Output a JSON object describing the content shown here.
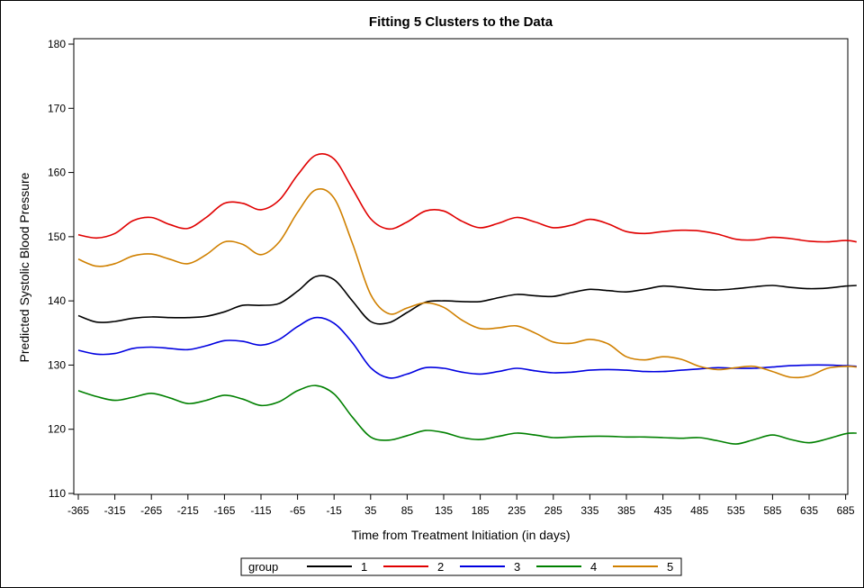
{
  "chart_data": {
    "type": "line",
    "title": "Fitting 5 Clusters to the Data",
    "xlabel": "Time from Treatment Initiation (in days)",
    "ylabel": "Predicted Systolic Blood Pressure",
    "xlim": [
      -365,
      700
    ],
    "ylim": [
      110,
      180
    ],
    "xticks": [
      -365,
      -315,
      -265,
      -215,
      -165,
      -115,
      -65,
      -15,
      35,
      85,
      135,
      185,
      235,
      285,
      335,
      385,
      435,
      485,
      535,
      585,
      635,
      685
    ],
    "yticks": [
      110,
      120,
      130,
      140,
      150,
      160,
      170,
      180
    ],
    "grid": false,
    "legend_title": "group",
    "legend_position": "bottom",
    "x": [
      -365,
      -340,
      -315,
      -290,
      -265,
      -240,
      -215,
      -190,
      -165,
      -140,
      -115,
      -90,
      -65,
      -40,
      -15,
      10,
      35,
      60,
      85,
      110,
      135,
      160,
      185,
      210,
      235,
      260,
      285,
      310,
      335,
      360,
      385,
      410,
      435,
      460,
      485,
      510,
      535,
      560,
      585,
      610,
      635,
      660,
      685,
      700
    ],
    "series": [
      {
        "name": "1",
        "color": "#000000",
        "values": [
          137.7,
          136.7,
          136.8,
          137.3,
          137.5,
          137.4,
          137.4,
          137.6,
          138.3,
          139.3,
          139.3,
          139.6,
          141.5,
          143.8,
          143.3,
          140.0,
          136.8,
          136.6,
          138.2,
          139.8,
          140.0,
          139.9,
          139.9,
          140.5,
          141.0,
          140.8,
          140.7,
          141.3,
          141.8,
          141.6,
          141.4,
          141.8,
          142.3,
          142.1,
          141.8,
          141.7,
          141.9,
          142.2,
          142.4,
          142.1,
          141.9,
          142.0,
          142.3,
          142.4
        ]
      },
      {
        "name": "2",
        "color": "#e00000",
        "values": [
          150.3,
          149.8,
          150.5,
          152.5,
          153.0,
          151.9,
          151.3,
          153.0,
          155.2,
          155.2,
          154.2,
          155.7,
          159.6,
          162.7,
          162.1,
          157.5,
          152.8,
          151.2,
          152.3,
          154.0,
          154.0,
          152.4,
          151.4,
          152.1,
          153.0,
          152.3,
          151.4,
          151.8,
          152.7,
          152.0,
          150.8,
          150.5,
          150.8,
          151.0,
          150.9,
          150.4,
          149.6,
          149.5,
          149.9,
          149.7,
          149.3,
          149.2,
          149.4,
          149.2
        ]
      },
      {
        "name": "3",
        "color": "#0000e0",
        "values": [
          132.3,
          131.7,
          131.8,
          132.6,
          132.8,
          132.6,
          132.4,
          133.0,
          133.8,
          133.7,
          133.1,
          134.0,
          136.0,
          137.4,
          136.5,
          133.5,
          129.6,
          128.0,
          128.6,
          129.6,
          129.5,
          128.9,
          128.6,
          129.0,
          129.5,
          129.1,
          128.8,
          128.9,
          129.2,
          129.3,
          129.2,
          129.0,
          129.0,
          129.2,
          129.4,
          129.6,
          129.5,
          129.5,
          129.7,
          129.9,
          130.0,
          130.0,
          129.9,
          129.8
        ]
      },
      {
        "name": "4",
        "color": "#008000",
        "values": [
          126.0,
          125.1,
          124.5,
          125.0,
          125.6,
          124.9,
          124.0,
          124.5,
          125.3,
          124.7,
          123.7,
          124.3,
          126.0,
          126.8,
          125.5,
          121.9,
          118.8,
          118.3,
          119.0,
          119.8,
          119.5,
          118.7,
          118.4,
          118.9,
          119.4,
          119.1,
          118.7,
          118.8,
          118.9,
          118.9,
          118.8,
          118.8,
          118.7,
          118.6,
          118.7,
          118.2,
          117.7,
          118.4,
          119.1,
          118.4,
          117.9,
          118.5,
          119.3,
          119.4
        ]
      },
      {
        "name": "5",
        "color": "#d08000",
        "values": [
          146.5,
          145.4,
          145.8,
          147.0,
          147.3,
          146.5,
          145.8,
          147.2,
          149.2,
          148.8,
          147.2,
          149.2,
          153.8,
          157.3,
          156.0,
          149.0,
          141.0,
          138.0,
          138.9,
          139.7,
          139.0,
          137.0,
          135.7,
          135.8,
          136.1,
          135.0,
          133.6,
          133.4,
          134.0,
          133.3,
          131.3,
          130.8,
          131.3,
          130.9,
          129.8,
          129.3,
          129.6,
          129.8,
          129.0,
          128.1,
          128.3,
          129.5,
          129.8,
          129.7
        ]
      }
    ]
  }
}
